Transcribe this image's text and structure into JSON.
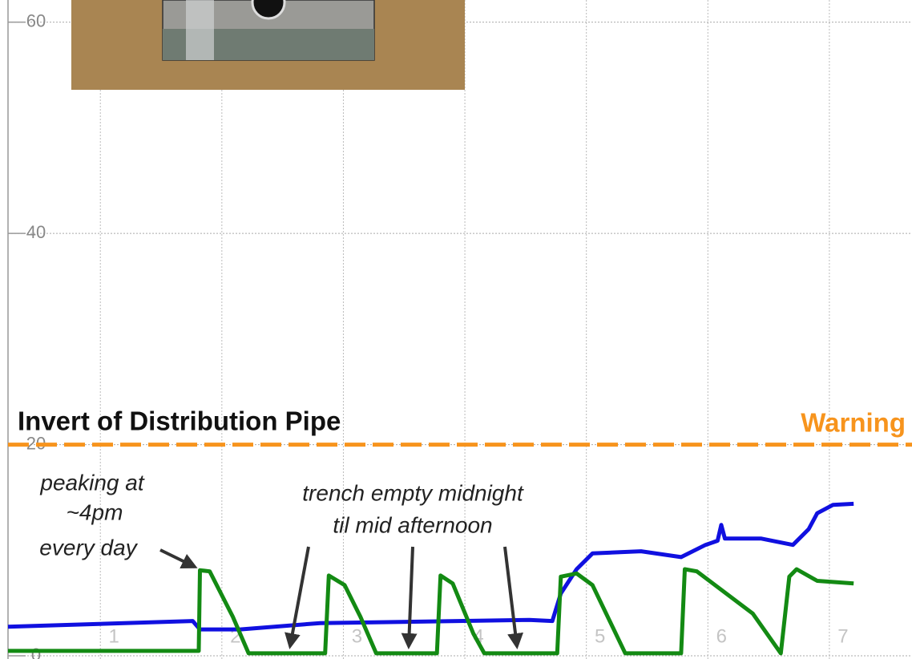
{
  "chart_data": {
    "type": "line",
    "title": "Invert of Distribution Pipe",
    "warning_label": "Warning",
    "warning_level": 20,
    "warning_color": "#f7941d",
    "annotations": [
      "peaking at",
      "~4pm",
      "every day",
      "trench empty midnight",
      "til mid afternoon"
    ],
    "xlim": [
      0.24,
      7.68
    ],
    "xticks": [
      1,
      2,
      3,
      4,
      5,
      6,
      7
    ],
    "ylim": [
      -0.3,
      62.1
    ],
    "yticks": [
      0,
      20,
      40,
      60
    ],
    "grid": true,
    "series": [
      {
        "color": "#1010e0",
        "x": [
          0.24,
          1.76,
          1.82,
          2.15,
          2.81,
          4.53,
          4.72,
          4.79,
          4.92,
          5.05,
          5.45,
          5.78,
          5.98,
          6.08,
          6.11,
          6.14,
          6.44,
          6.7,
          6.83,
          6.9,
          7.03,
          7.2
        ],
        "values": [
          2.75,
          3.3,
          2.5,
          2.5,
          3.1,
          3.4,
          3.3,
          5.9,
          8.2,
          9.7,
          9.9,
          9.35,
          10.5,
          10.9,
          12.4,
          11.1,
          11.1,
          10.5,
          12.0,
          13.5,
          14.3,
          14.4
        ]
      },
      {
        "color": "#138a13",
        "x": [
          0.24,
          1.81,
          1.82,
          1.9,
          2.09,
          2.22,
          2.85,
          2.88,
          3.01,
          3.14,
          3.27,
          3.77,
          3.8,
          3.9,
          4.07,
          4.16,
          4.76,
          4.79,
          4.92,
          5.05,
          5.32,
          5.78,
          5.81,
          5.91,
          6.37,
          6.6,
          6.67,
          6.73,
          6.9,
          7.2
        ],
        "values": [
          0.47,
          0.47,
          8.1,
          8.0,
          3.7,
          0.24,
          0.24,
          7.6,
          6.7,
          3.7,
          0.24,
          0.24,
          7.6,
          6.85,
          2.1,
          0.24,
          0.24,
          7.5,
          7.8,
          6.7,
          0.24,
          0.24,
          8.2,
          8.0,
          4.0,
          0.24,
          7.5,
          8.2,
          7.1,
          6.85
        ]
      }
    ]
  }
}
